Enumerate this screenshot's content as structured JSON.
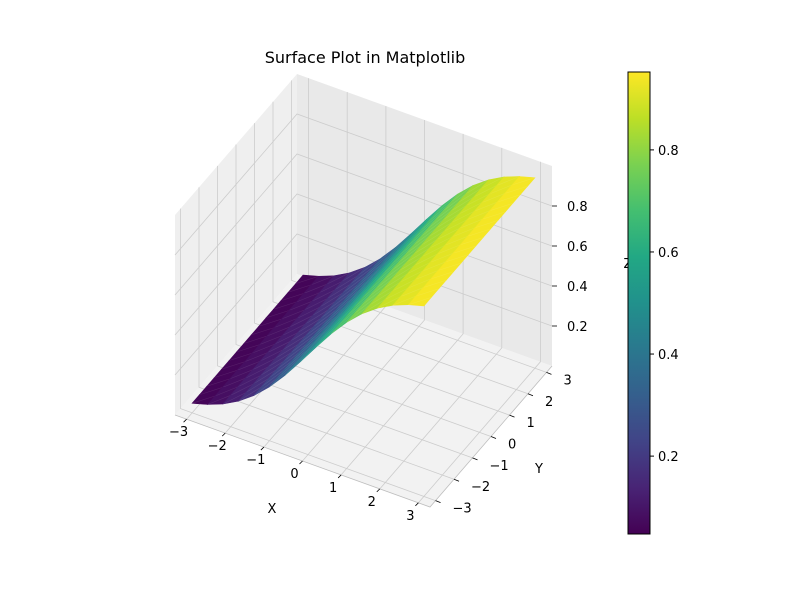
{
  "chart_data": {
    "type": "surface",
    "title": "Surface Plot in Matplotlib",
    "xlabel": "X",
    "ylabel": "Y",
    "zlabel": "Z",
    "function": "z = 1 / (1 + exp(-x))",
    "xlim": [
      -3.3,
      3.3
    ],
    "ylim": [
      -3.3,
      3.3
    ],
    "zlim": [
      0,
      1
    ],
    "x_ticks": [
      -3,
      -2,
      -1,
      0,
      1,
      2,
      3
    ],
    "y_ticks": [
      -3,
      -2,
      -1,
      0,
      1,
      2,
      3
    ],
    "z_ticks": [
      0.2,
      0.4,
      0.6,
      0.8
    ],
    "grid_x": [
      -3,
      -2.6,
      -2.2,
      -1.8,
      -1.4,
      -1,
      -0.6,
      -0.2,
      0.2,
      0.6,
      1,
      1.4,
      1.8,
      2.2,
      2.6,
      3
    ],
    "grid_y": [
      -3,
      -2.6,
      -2.2,
      -1.8,
      -1.4,
      -1,
      -0.6,
      -0.2,
      0.2,
      0.6,
      1,
      1.4,
      1.8,
      2.2,
      2.6,
      3
    ],
    "colormap": "viridis",
    "colorbar_ticks": [
      0.2,
      0.4,
      0.6,
      0.8
    ],
    "colorbar_range": [
      0.0474,
      0.9526
    ],
    "grid": true,
    "colors": {
      "pane_floor": "#f2f2f2",
      "pane_back": "#e9e9e9",
      "pane_side": "#efefef",
      "gridline": "#cccccc"
    }
  }
}
